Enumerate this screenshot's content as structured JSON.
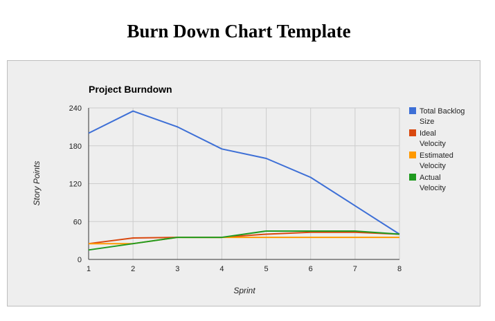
{
  "page": {
    "title": "Burn Down Chart Template"
  },
  "chart_data": {
    "type": "line",
    "title": "Project Burndown",
    "xlabel": "Sprint",
    "ylabel": "Story Points",
    "x": [
      1,
      2,
      3,
      4,
      5,
      6,
      7,
      8
    ],
    "xlim": [
      1,
      8
    ],
    "ylim": [
      0,
      240
    ],
    "yticks": [
      0,
      60,
      120,
      180,
      240
    ],
    "grid": true,
    "legend_position": "right",
    "series": [
      {
        "name": "Total Backlog Size",
        "color": "#3d6fd6",
        "values": [
          200,
          235,
          210,
          175,
          160,
          130,
          85,
          40
        ]
      },
      {
        "name": "Ideal Velocity",
        "color": "#d9480f",
        "values": [
          25,
          34,
          35,
          35,
          40,
          43,
          43,
          40
        ]
      },
      {
        "name": "Estimated Velocity",
        "color": "#ff9900",
        "values": [
          25,
          25,
          35,
          35,
          35,
          35,
          35,
          35
        ]
      },
      {
        "name": "Actual Velocity",
        "color": "#1f9a1f",
        "values": [
          15,
          25,
          35,
          35,
          45,
          45,
          45,
          40
        ]
      }
    ]
  }
}
